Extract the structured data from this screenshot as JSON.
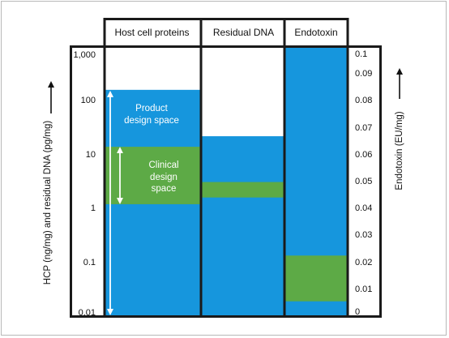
{
  "chart_data": {
    "type": "range-band",
    "columns": [
      "Host cell proteins",
      "Residual DNA",
      "Endotoxin"
    ],
    "left_axis": {
      "label": "HCP (ng/mg) and residual DNA (pg/mg)",
      "scale": "log",
      "range": [
        0.01,
        1000
      ],
      "ticks": [
        "1,000",
        "100",
        "10",
        "1",
        "0.1",
        "0.01"
      ],
      "tick_values": [
        1000,
        100,
        10,
        1,
        0.1,
        0.01
      ]
    },
    "right_axis": {
      "label": "Endotoxin (EU/mg)",
      "scale": "linear",
      "range": [
        0,
        0.1
      ],
      "ticks": [
        "0.1",
        "0.09",
        "0.08",
        "0.07",
        "0.06",
        "0.05",
        "0.04",
        "0.03",
        "0.02",
        "0.01",
        "0"
      ],
      "tick_values": [
        0.1,
        0.09,
        0.08,
        0.07,
        0.06,
        0.05,
        0.04,
        0.03,
        0.02,
        0.01,
        0
      ]
    },
    "series": [
      {
        "column": "Host cell proteins",
        "axis": "left",
        "product_design_space": [
          0.01,
          160
        ],
        "clinical_design_space": [
          1.2,
          14
        ]
      },
      {
        "column": "Residual DNA",
        "axis": "left",
        "product_design_space": [
          0.01,
          22
        ],
        "clinical_design_space": [
          1.6,
          3.1
        ]
      },
      {
        "column": "Endotoxin",
        "axis": "right",
        "product_design_space": [
          0,
          0.1
        ],
        "clinical_design_space": [
          0.0055,
          0.0225
        ]
      }
    ],
    "annotations": {
      "product": "Product design space",
      "clinical": "Clinical design space"
    },
    "colors": {
      "product": "#1696dd",
      "clinical": "#5daa46",
      "border": "#1a1a1a",
      "arrow": "#ffffff"
    }
  }
}
